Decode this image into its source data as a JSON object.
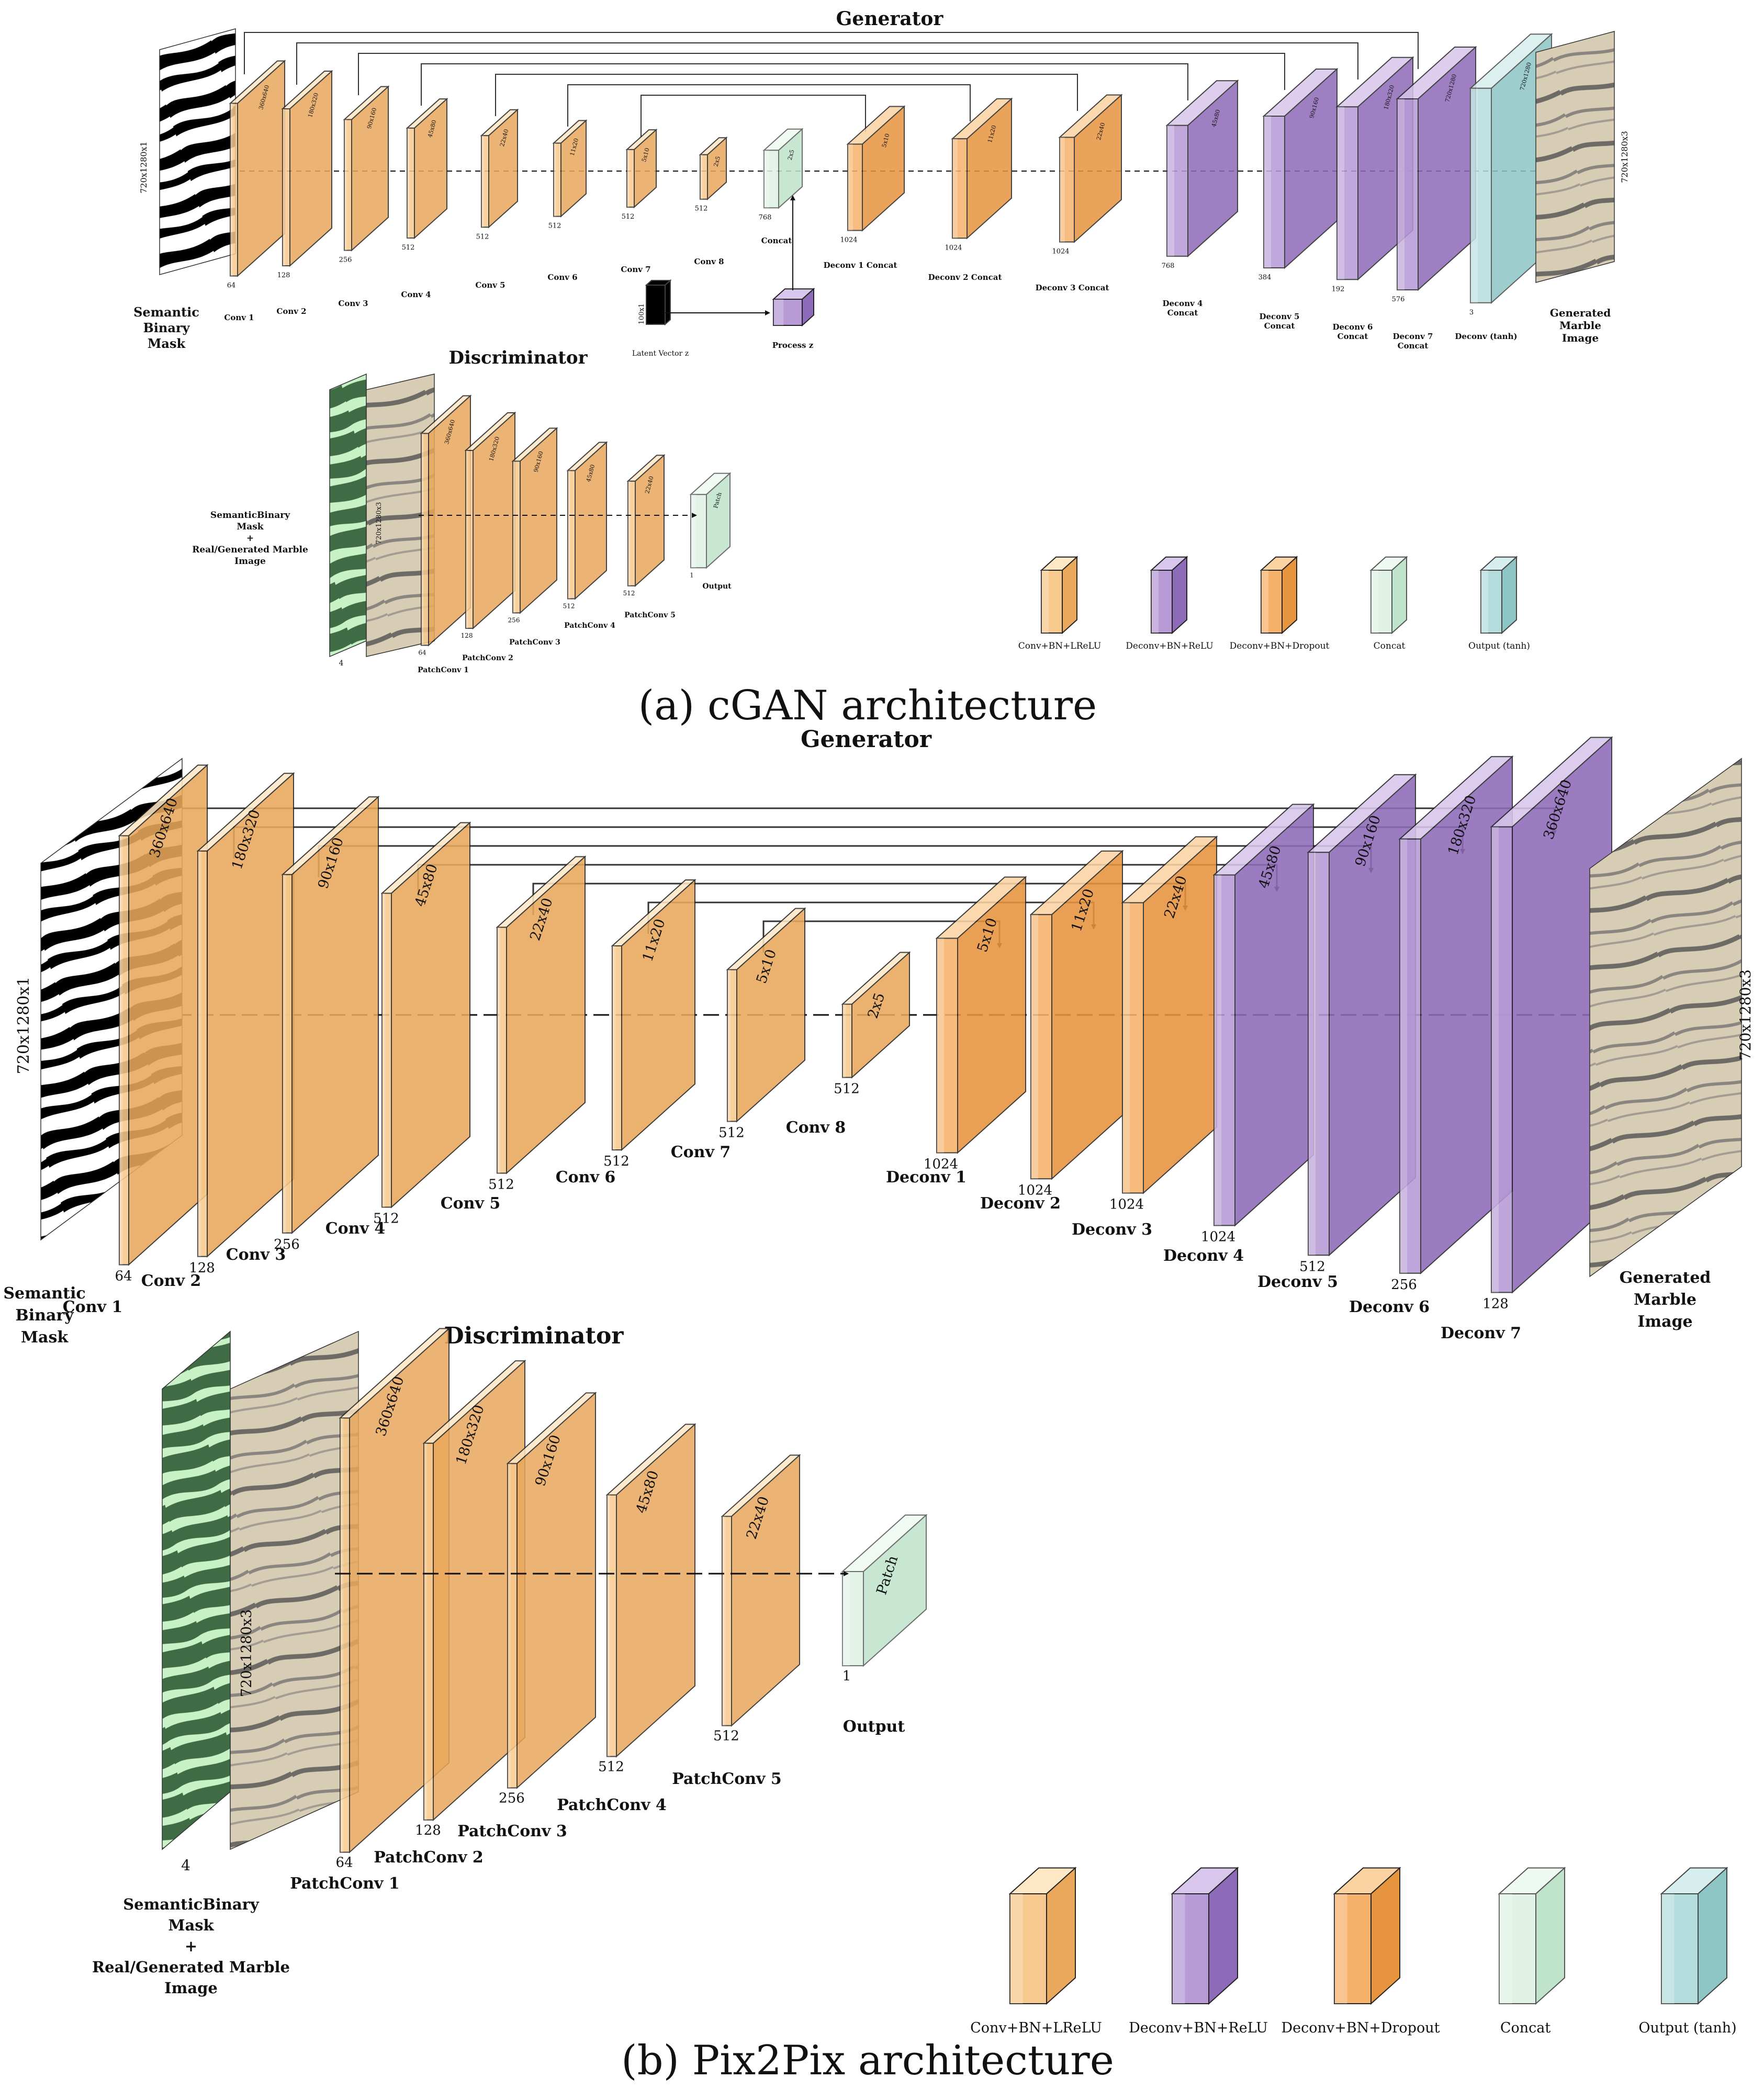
{
  "captions": {
    "a": "(a)   cGAN architecture",
    "b": "(b)   Pix2Pix architecture"
  },
  "colors": {
    "conv": "#f7c98e",
    "conv_light": "#fde7c5",
    "deconv_relu": "#b79ad6",
    "dropout": "#f6b26b",
    "concat": "#dff2e5",
    "output": "#b4dcdc",
    "mask_dark": "#3f6b45",
    "mask_light": "#c8f1c6",
    "marble": "#c9bda6"
  },
  "legend": [
    {
      "label": "Conv+BN+LReLU",
      "kind": "conv"
    },
    {
      "label": "Deconv+BN+ReLU",
      "kind": "deconv"
    },
    {
      "label": "Deconv+BN+Dropout",
      "kind": "dropout"
    },
    {
      "label": "Concat",
      "kind": "concat"
    },
    {
      "label": "Output (tanh)",
      "kind": "output"
    }
  ],
  "panel_a": {
    "generator_title": "Generator",
    "discriminator_title": "Discriminator",
    "input_dim": "720x1280x1",
    "output_dim": "720x1280x3",
    "input_label": [
      "Semantic",
      "Binary",
      "Mask"
    ],
    "output_label": [
      "Generated",
      "Marble",
      "Image"
    ],
    "latent": {
      "dim": "100x1",
      "label": "Latent Vector z",
      "process_label": "Process z"
    },
    "gen_layers": [
      {
        "name": "Conv 1",
        "channels": "64",
        "size": "360x640",
        "kind": "conv"
      },
      {
        "name": "Conv 2",
        "channels": "128",
        "size": "180x320",
        "kind": "conv"
      },
      {
        "name": "Conv 3",
        "channels": "256",
        "size": "90x160",
        "kind": "conv"
      },
      {
        "name": "Conv 4",
        "channels": "512",
        "size": "45x80",
        "kind": "conv"
      },
      {
        "name": "Conv 5",
        "channels": "512",
        "size": "22x40",
        "kind": "conv"
      },
      {
        "name": "Conv 6",
        "channels": "512",
        "size": "11x20",
        "kind": "conv"
      },
      {
        "name": "Conv 7",
        "channels": "512",
        "size": "5x10",
        "kind": "conv"
      },
      {
        "name": "Conv 8",
        "channels": "512",
        "size": "2x5",
        "kind": "conv"
      },
      {
        "name": "Concat",
        "channels": "768",
        "size": "2x5",
        "kind": "concat"
      },
      {
        "name": "Deconv 1 Concat",
        "channels": "1024",
        "size": "5x10",
        "kind": "dropout"
      },
      {
        "name": "Deconv 2 Concat",
        "channels": "1024",
        "size": "11x20",
        "kind": "dropout"
      },
      {
        "name": "Deconv 3 Concat",
        "channels": "1024",
        "size": "22x40",
        "kind": "dropout"
      },
      {
        "name": "Deconv 4 Concat",
        "channels": "768",
        "size": "45x80",
        "kind": "deconv"
      },
      {
        "name": "Deconv 5 Concat",
        "channels": "384",
        "size": "90x160",
        "kind": "deconv"
      },
      {
        "name": "Deconv 6 Concat",
        "channels": "192",
        "size": "180x320",
        "kind": "deconv"
      },
      {
        "name": "Deconv 7 Concat",
        "channels": "576",
        "size": "720x1280",
        "kind": "deconv"
      },
      {
        "name": "Deconv (tanh)",
        "channels": "3",
        "size": "720x1280",
        "kind": "output"
      }
    ],
    "disc_input_label": [
      "SemanticBinary",
      "Mask",
      "+",
      "Real/Generated Marble",
      "Image"
    ],
    "disc_input_channels": "4",
    "disc_input_dim": "720x1280x3",
    "disc_layers": [
      {
        "name": "PatchConv 1",
        "channels": "64",
        "size": "360x640",
        "kind": "conv"
      },
      {
        "name": "PatchConv 2",
        "channels": "128",
        "size": "180x320",
        "kind": "conv"
      },
      {
        "name": "PatchConv 3",
        "channels": "256",
        "size": "90x160",
        "kind": "conv"
      },
      {
        "name": "PatchConv 4",
        "channels": "512",
        "size": "45x80",
        "kind": "conv"
      },
      {
        "name": "PatchConv 5",
        "channels": "512",
        "size": "22x40",
        "kind": "conv"
      },
      {
        "name": "Output",
        "channels": "1",
        "size": "Patch",
        "kind": "concat"
      }
    ]
  },
  "panel_b": {
    "generator_title": "Generator",
    "discriminator_title": "Discriminator",
    "input_dim": "720x1280x1",
    "output_dim": "720x1280x3",
    "input_label": [
      "Semantic",
      "Binary",
      "Mask"
    ],
    "output_label": [
      "Generated",
      "Marble",
      "Image"
    ],
    "gen_layers": [
      {
        "name": "Conv 1",
        "channels": "64",
        "size": "360x640",
        "kind": "conv"
      },
      {
        "name": "Conv 2",
        "channels": "128",
        "size": "180x320",
        "kind": "conv"
      },
      {
        "name": "Conv 3",
        "channels": "256",
        "size": "90x160",
        "kind": "conv"
      },
      {
        "name": "Conv 4",
        "channels": "512",
        "size": "45x80",
        "kind": "conv"
      },
      {
        "name": "Conv 5",
        "channels": "512",
        "size": "22x40",
        "kind": "conv"
      },
      {
        "name": "Conv 6",
        "channels": "512",
        "size": "11x20",
        "kind": "conv"
      },
      {
        "name": "Conv 7",
        "channels": "512",
        "size": "5x10",
        "kind": "conv"
      },
      {
        "name": "Conv 8",
        "channels": "512",
        "size": "2x5",
        "kind": "conv"
      },
      {
        "name": "Deconv 1",
        "channels": "1024",
        "size": "5x10",
        "kind": "dropout"
      },
      {
        "name": "Deconv 2",
        "channels": "1024",
        "size": "11x20",
        "kind": "dropout"
      },
      {
        "name": "Deconv 3",
        "channels": "1024",
        "size": "22x40",
        "kind": "dropout"
      },
      {
        "name": "Deconv 4",
        "channels": "1024",
        "size": "45x80",
        "kind": "deconv"
      },
      {
        "name": "Deconv 5",
        "channels": "512",
        "size": "90x160",
        "kind": "deconv"
      },
      {
        "name": "Deconv 6",
        "channels": "256",
        "size": "180x320",
        "kind": "deconv"
      },
      {
        "name": "Deconv 7",
        "channels": "128",
        "size": "360x640",
        "kind": "deconv"
      }
    ],
    "disc_input_label": [
      "SemanticBinary",
      "Mask",
      "+",
      "Real/Generated Marble",
      "Image"
    ],
    "disc_input_channels": "4",
    "disc_input_dim": "720x1280x3",
    "disc_layers": [
      {
        "name": "PatchConv 1",
        "channels": "64",
        "size": "360x640",
        "kind": "conv"
      },
      {
        "name": "PatchConv 2",
        "channels": "128",
        "size": "180x320",
        "kind": "conv"
      },
      {
        "name": "PatchConv 3",
        "channels": "256",
        "size": "90x160",
        "kind": "conv"
      },
      {
        "name": "PatchConv 4",
        "channels": "512",
        "size": "45x80",
        "kind": "conv"
      },
      {
        "name": "PatchConv 5",
        "channels": "512",
        "size": "22x40",
        "kind": "conv"
      },
      {
        "name": "Output",
        "channels": "1",
        "size": "Patch",
        "kind": "concat"
      }
    ]
  }
}
